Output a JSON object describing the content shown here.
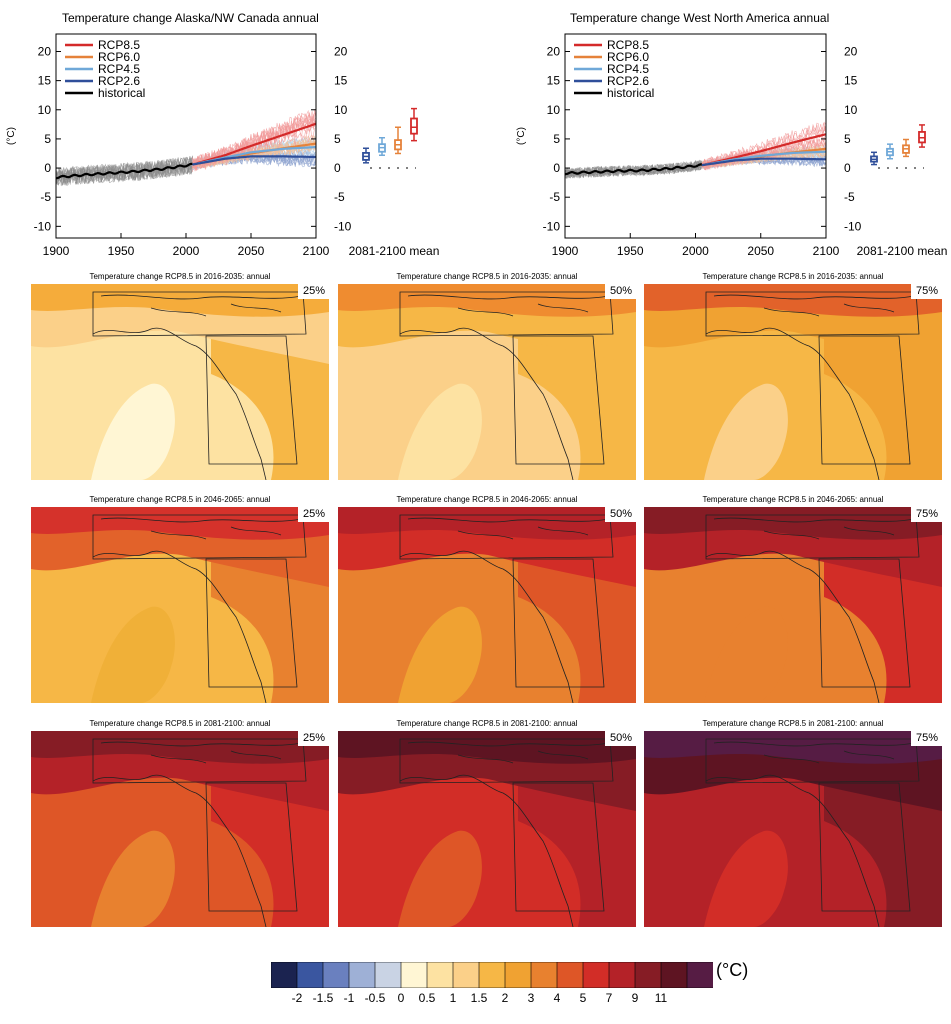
{
  "chart_data": [
    {
      "type": "line",
      "title": "Temperature change Alaska/NW Canada annual",
      "ylabel": "(°C)",
      "xlim": [
        1900,
        2100
      ],
      "ylim": [
        -12,
        23
      ],
      "x_ticks": [
        "1900",
        "1950",
        "2000",
        "2050",
        "2100"
      ],
      "y_ticks": [
        "-10",
        "-5",
        "0",
        "5",
        "10",
        "15",
        "20"
      ],
      "legend": [
        "RCP8.5",
        "RCP6.0",
        "RCP4.5",
        "RCP2.6",
        "historical"
      ],
      "box_label": "2081-2100 mean",
      "series": [
        {
          "name": "historical",
          "color": "#000000",
          "x": [
            1900,
            1920,
            1940,
            1960,
            1980,
            2005
          ],
          "y": [
            -1.6,
            -1.2,
            -0.9,
            -0.6,
            -0.2,
            0.6
          ]
        },
        {
          "name": "RCP8.5",
          "color": "#d42a2a",
          "x": [
            2005,
            2030,
            2050,
            2075,
            2100
          ],
          "y": [
            0.6,
            2.2,
            3.8,
            5.7,
            7.6
          ]
        },
        {
          "name": "RCP6.0",
          "color": "#e5823a",
          "x": [
            2005,
            2030,
            2050,
            2075,
            2100
          ],
          "y": [
            0.6,
            1.6,
            2.5,
            3.4,
            4.2
          ]
        },
        {
          "name": "RCP4.5",
          "color": "#6fa8d8",
          "x": [
            2005,
            2030,
            2050,
            2075,
            2100
          ],
          "y": [
            0.6,
            1.8,
            2.7,
            3.3,
            3.6
          ]
        },
        {
          "name": "RCP2.6",
          "color": "#2f4f9a",
          "x": [
            2005,
            2030,
            2050,
            2075,
            2100
          ],
          "y": [
            0.6,
            1.6,
            2.0,
            2.0,
            1.9
          ]
        }
      ],
      "boxes": [
        {
          "name": "RCP2.6",
          "color": "#2f4f9a",
          "min": 0.9,
          "q1": 1.4,
          "median": 2.0,
          "q3": 2.6,
          "max": 3.4
        },
        {
          "name": "RCP4.5",
          "color": "#6fa8d8",
          "min": 2.2,
          "q1": 2.8,
          "median": 3.5,
          "q3": 4.1,
          "max": 5.2
        },
        {
          "name": "RCP6.0",
          "color": "#e5823a",
          "min": 2.5,
          "q1": 3.2,
          "median": 4.0,
          "q3": 4.8,
          "max": 7.0
        },
        {
          "name": "RCP8.5",
          "color": "#d42a2a",
          "min": 4.7,
          "q1": 5.9,
          "median": 7.0,
          "q3": 8.5,
          "max": 10.2
        }
      ]
    },
    {
      "type": "line",
      "title": "Temperature change West North America annual",
      "ylabel": "(°C)",
      "xlim": [
        1900,
        2100
      ],
      "ylim": [
        -12,
        23
      ],
      "x_ticks": [
        "1900",
        "1950",
        "2000",
        "2050",
        "2100"
      ],
      "y_ticks": [
        "-10",
        "-5",
        "0",
        "5",
        "10",
        "15",
        "20"
      ],
      "legend": [
        "RCP8.5",
        "RCP6.0",
        "RCP4.5",
        "RCP2.6",
        "historical"
      ],
      "box_label": "2081-2100 mean",
      "series": [
        {
          "name": "historical",
          "color": "#000000",
          "x": [
            1900,
            1920,
            1940,
            1960,
            1980,
            2005
          ],
          "y": [
            -0.9,
            -0.7,
            -0.5,
            -0.4,
            -0.1,
            0.5
          ]
        },
        {
          "name": "RCP8.5",
          "color": "#d42a2a",
          "x": [
            2005,
            2030,
            2050,
            2075,
            2100
          ],
          "y": [
            0.5,
            1.8,
            2.9,
            4.4,
            5.8
          ]
        },
        {
          "name": "RCP6.0",
          "color": "#e5823a",
          "x": [
            2005,
            2030,
            2050,
            2075,
            2100
          ],
          "y": [
            0.5,
            1.3,
            2.0,
            2.7,
            3.3
          ]
        },
        {
          "name": "RCP4.5",
          "color": "#6fa8d8",
          "x": [
            2005,
            2030,
            2050,
            2075,
            2100
          ],
          "y": [
            0.5,
            1.5,
            2.1,
            2.6,
            2.8
          ]
        },
        {
          "name": "RCP2.6",
          "color": "#2f4f9a",
          "x": [
            2005,
            2030,
            2050,
            2075,
            2100
          ],
          "y": [
            0.5,
            1.3,
            1.6,
            1.6,
            1.5
          ]
        }
      ],
      "boxes": [
        {
          "name": "RCP2.6",
          "color": "#2f4f9a",
          "min": 0.6,
          "q1": 1.1,
          "median": 1.5,
          "q3": 2.0,
          "max": 2.7
        },
        {
          "name": "RCP4.5",
          "color": "#6fa8d8",
          "min": 1.6,
          "q1": 2.2,
          "median": 2.8,
          "q3": 3.3,
          "max": 4.1
        },
        {
          "name": "RCP6.0",
          "color": "#e5823a",
          "min": 2.0,
          "q1": 2.6,
          "median": 3.3,
          "q3": 3.9,
          "max": 4.9
        },
        {
          "name": "RCP8.5",
          "color": "#d42a2a",
          "min": 3.6,
          "q1": 4.4,
          "median": 5.2,
          "q3": 6.2,
          "max": 7.4
        }
      ]
    },
    {
      "type": "heatmap",
      "unit": "(°C)",
      "colorbar": {
        "labels": [
          "-2",
          "-1.5",
          "-1",
          "-0.5",
          "0",
          "0.5",
          "1",
          "1.5",
          "2",
          "3",
          "4",
          "5",
          "7",
          "9",
          "11"
        ],
        "colors": [
          "#1b2350",
          "#3a56a0",
          "#6a80bf",
          "#9eb0d6",
          "#c9d3e4",
          "#fff6d4",
          "#fde2a2",
          "#fbd089",
          "#f6b746",
          "#f0a232",
          "#e8812f",
          "#de5627",
          "#d22d27",
          "#b42228",
          "#861c25",
          "#5e1422",
          "#561c44"
        ]
      },
      "panels": [
        {
          "title": "Temperature change RCP8.5 in 2016-2035: annual",
          "percentile": "25%",
          "colors": [
            "#f5ac3b",
            "#fbd089",
            "#fde2a2",
            "#fff6d4",
            "#f6b746"
          ]
        },
        {
          "title": "Temperature change RCP8.5 in 2016-2035: annual",
          "percentile": "50%",
          "colors": [
            "#ef8c30",
            "#f6b746",
            "#fbd089",
            "#fde2a2",
            "#f6b746"
          ]
        },
        {
          "title": "Temperature change RCP8.5 in 2016-2035: annual",
          "percentile": "75%",
          "colors": [
            "#e2622a",
            "#f0a232",
            "#f6b746",
            "#fbd089",
            "#f0a232"
          ]
        },
        {
          "title": "Temperature change RCP8.5 in 2046-2065: annual",
          "percentile": "25%",
          "colors": [
            "#d5322b",
            "#e2622a",
            "#f6b746",
            "#f0b038",
            "#e8812f"
          ]
        },
        {
          "title": "Temperature change RCP8.5 in 2046-2065: annual",
          "percentile": "50%",
          "colors": [
            "#b42228",
            "#d22d27",
            "#e8812f",
            "#f0a232",
            "#de5627"
          ]
        },
        {
          "title": "Temperature change RCP8.5 in 2046-2065: annual",
          "percentile": "75%",
          "colors": [
            "#861c25",
            "#b42228",
            "#e8812f",
            "#e8812f",
            "#d22d27"
          ]
        },
        {
          "title": "Temperature change RCP8.5 in 2081-2100: annual",
          "percentile": "25%",
          "colors": [
            "#861c25",
            "#b42228",
            "#de5627",
            "#e8812f",
            "#d22d27"
          ]
        },
        {
          "title": "Temperature change RCP8.5 in 2081-2100: annual",
          "percentile": "50%",
          "colors": [
            "#5e1422",
            "#861c25",
            "#d22d27",
            "#de5627",
            "#b42228"
          ]
        },
        {
          "title": "Temperature change RCP8.5 in 2081-2100: annual",
          "percentile": "75%",
          "colors": [
            "#561c44",
            "#5e1422",
            "#b42228",
            "#d22d27",
            "#861c25"
          ]
        }
      ]
    }
  ]
}
